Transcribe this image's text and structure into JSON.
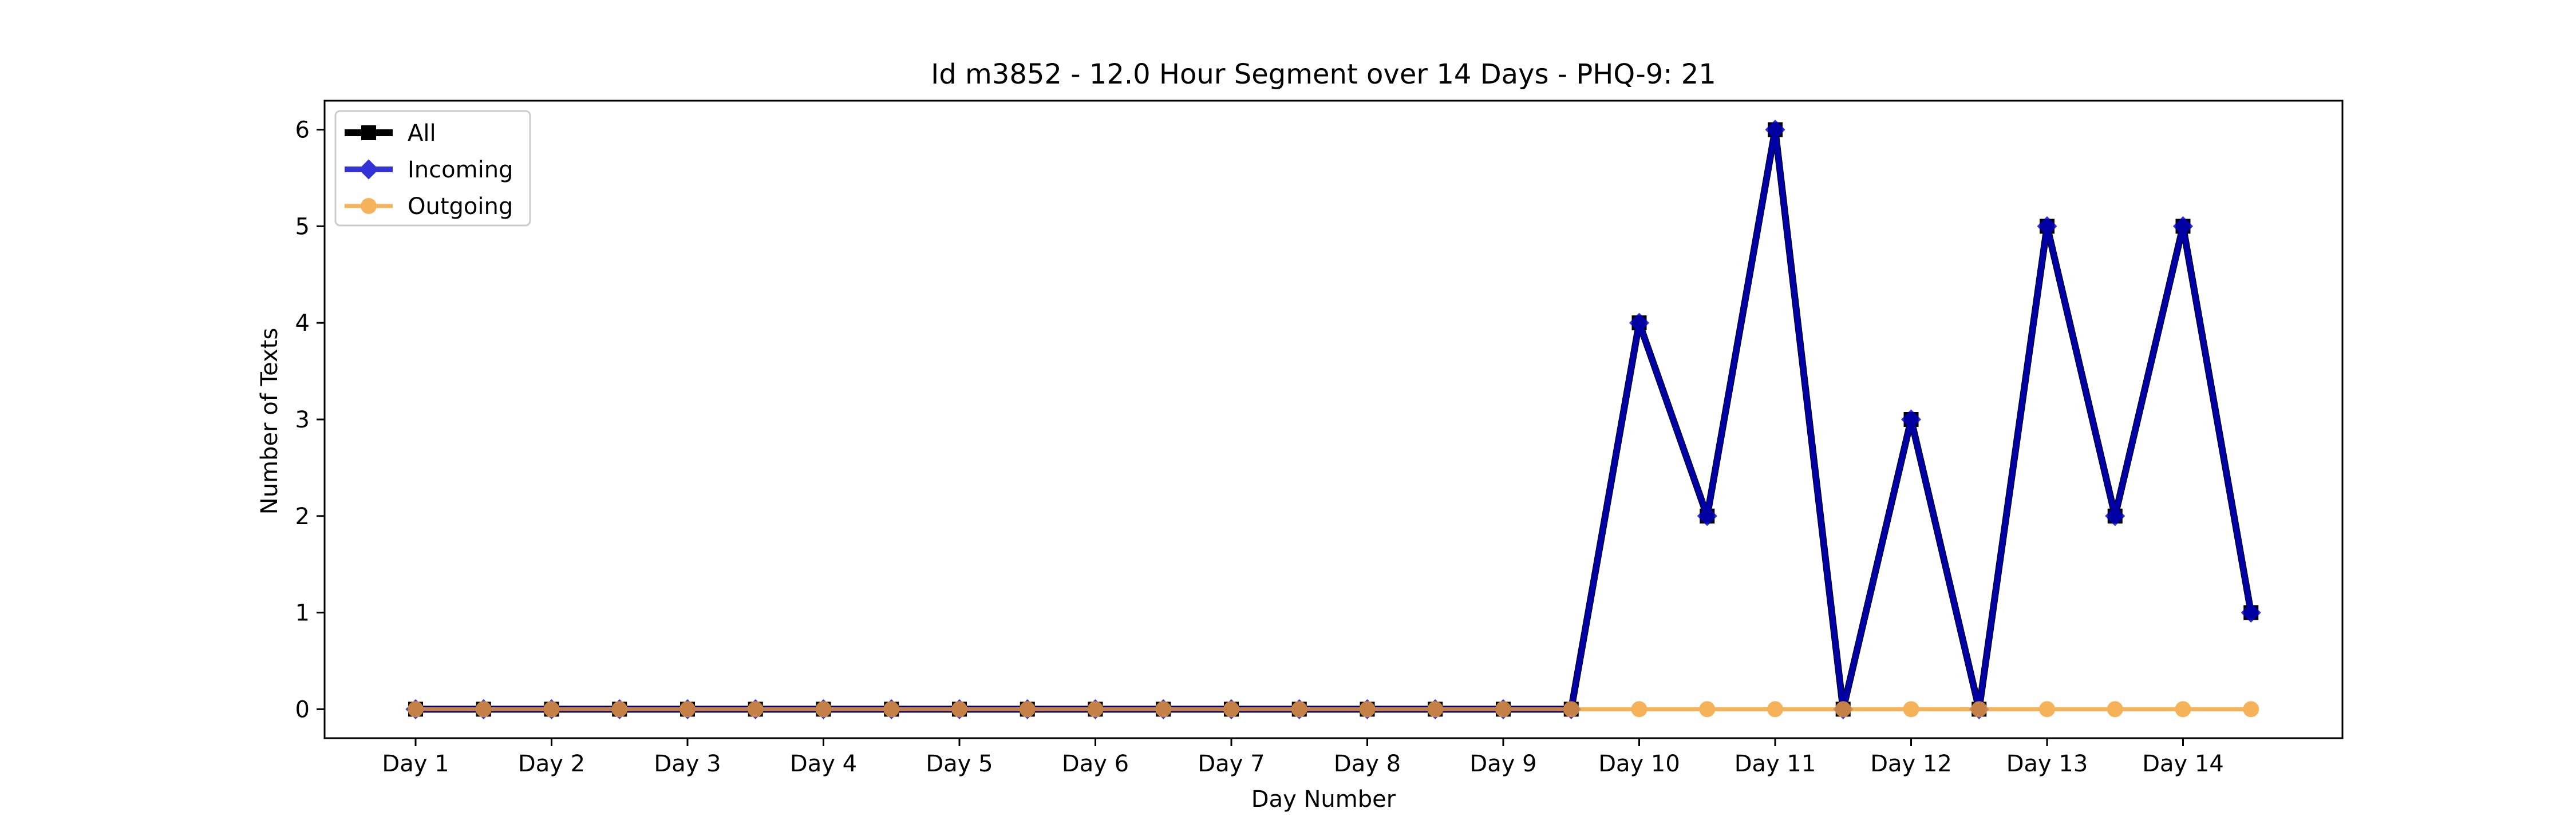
{
  "chart_data": {
    "type": "line",
    "title": "Id m3852 - 12.0 Hour Segment over 14 Days - PHQ-9: 21",
    "xlabel": "Day Number",
    "ylabel": "Number of Texts",
    "x_tick_labels": [
      "Day 1",
      "Day 2",
      "Day 3",
      "Day 4",
      "Day 5",
      "Day 6",
      "Day 7",
      "Day 8",
      "Day 9",
      "Day 10",
      "Day 11",
      "Day 12",
      "Day 13",
      "Day 14"
    ],
    "y_ticks": [
      0,
      1,
      2,
      3,
      4,
      5,
      6
    ],
    "ylim": [
      -0.3,
      6.3
    ],
    "grid": false,
    "legend_position": "top-left",
    "series": [
      {
        "name": "All",
        "color": "#000000",
        "marker": "square",
        "values": [
          0,
          0,
          0,
          0,
          0,
          0,
          0,
          0,
          0,
          0,
          0,
          0,
          0,
          0,
          0,
          0,
          0,
          0,
          4,
          2,
          6,
          0,
          3,
          0,
          5,
          2,
          5,
          1
        ]
      },
      {
        "name": "Incoming",
        "color": "#0000cc",
        "marker": "diamond",
        "values": [
          0,
          0,
          0,
          0,
          0,
          0,
          0,
          0,
          0,
          0,
          0,
          0,
          0,
          0,
          0,
          0,
          0,
          0,
          4,
          2,
          6,
          0,
          3,
          0,
          5,
          2,
          5,
          1
        ]
      },
      {
        "name": "Outgoing",
        "color": "#f5a030",
        "marker": "circle",
        "values": [
          0,
          0,
          0,
          0,
          0,
          0,
          0,
          0,
          0,
          0,
          0,
          0,
          0,
          0,
          0,
          0,
          0,
          0,
          0,
          0,
          0,
          0,
          0,
          0,
          0,
          0,
          0,
          0
        ]
      }
    ]
  }
}
